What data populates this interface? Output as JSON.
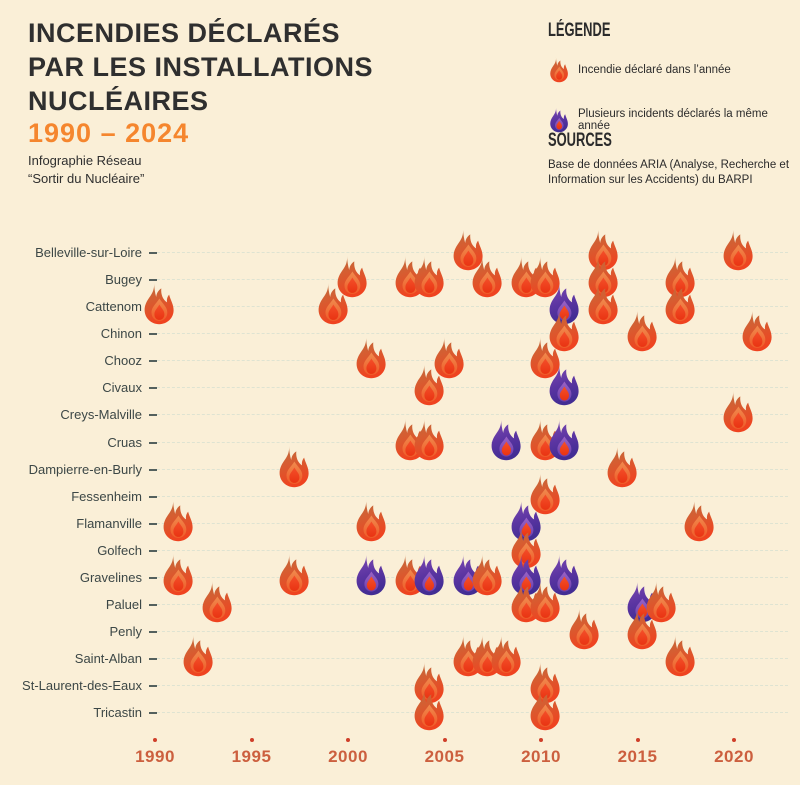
{
  "title": {
    "lines": [
      "INCENDIES DÉCLARÉS",
      "PAR LES INSTALLATIONS",
      "NUCLÉAIRES"
    ],
    "subtitle": "1990 – 2024"
  },
  "credit": {
    "lines": [
      "Infographie Réseau",
      "“Sortir du Nucléaire”"
    ]
  },
  "legend": {
    "heading": "LÉGENDE",
    "items": [
      {
        "type": "single",
        "icon": "single-fire-icon",
        "label": "Incendie déclaré dans l’année"
      },
      {
        "type": "multiple",
        "icon": "multiple-fire-icon",
        "label": "Plusieurs incidents déclarés la même année"
      }
    ]
  },
  "sources": {
    "heading": "SOURCES",
    "text": "Base de données ARIA (Analyse, Recherche et Information sur les Accidents) du BARPI"
  },
  "colors": {
    "background": "#faefd7",
    "title_text": "#2f2f2f",
    "accent_orange": "#f5862e",
    "axis_label_orange": "#cc5f3e",
    "row_label_dark": "#3c4746",
    "gridline": "#dee3d2",
    "flame_orange_top": "#b96e3e",
    "flame_orange_bottom": "#ef4320",
    "flame_purple_top": "#7f4cb3",
    "flame_purple_bottom": "#422d94",
    "flame_core_red": "#ee3a1a"
  },
  "chart_data": {
    "type": "scatter",
    "title": "Incendies déclarés par les installations nucléaires 1990 – 2024",
    "x_axis": {
      "range": [
        1990,
        2024
      ],
      "ticks": [
        1990,
        1995,
        2000,
        2005,
        2010,
        2015,
        2020
      ]
    },
    "marker_meaning": {
      "single": "incendie déclaré dans l’année",
      "multiple": "plusieurs incidents déclarés la même année"
    },
    "rows": [
      {
        "label": "Belleville-sur-Loire",
        "events": [
          {
            "year": 2006,
            "multiple": false
          },
          {
            "year": 2013,
            "multiple": false
          },
          {
            "year": 2020,
            "multiple": false
          }
        ]
      },
      {
        "label": "Bugey",
        "events": [
          {
            "year": 2000,
            "multiple": false
          },
          {
            "year": 2003,
            "multiple": false
          },
          {
            "year": 2004,
            "multiple": false
          },
          {
            "year": 2007,
            "multiple": false
          },
          {
            "year": 2009,
            "multiple": false
          },
          {
            "year": 2010,
            "multiple": false
          },
          {
            "year": 2013,
            "multiple": false
          },
          {
            "year": 2017,
            "multiple": false
          }
        ]
      },
      {
        "label": "Cattenom",
        "events": [
          {
            "year": 1990,
            "multiple": false
          },
          {
            "year": 1999,
            "multiple": false
          },
          {
            "year": 2011,
            "multiple": true
          },
          {
            "year": 2013,
            "multiple": false
          },
          {
            "year": 2017,
            "multiple": false
          }
        ]
      },
      {
        "label": "Chinon",
        "events": [
          {
            "year": 2011,
            "multiple": false
          },
          {
            "year": 2015,
            "multiple": false
          },
          {
            "year": 2021,
            "multiple": false
          }
        ]
      },
      {
        "label": "Chooz",
        "events": [
          {
            "year": 2001,
            "multiple": false
          },
          {
            "year": 2005,
            "multiple": false
          },
          {
            "year": 2010,
            "multiple": false
          }
        ]
      },
      {
        "label": "Civaux",
        "events": [
          {
            "year": 2004,
            "multiple": false
          },
          {
            "year": 2011,
            "multiple": true
          }
        ]
      },
      {
        "label": "Creys-Malville",
        "events": [
          {
            "year": 2020,
            "multiple": false
          }
        ]
      },
      {
        "label": "Cruas",
        "events": [
          {
            "year": 2003,
            "multiple": false
          },
          {
            "year": 2004,
            "multiple": false
          },
          {
            "year": 2008,
            "multiple": true
          },
          {
            "year": 2010,
            "multiple": false
          },
          {
            "year": 2011,
            "multiple": true
          }
        ]
      },
      {
        "label": "Dampierre-en-Burly",
        "events": [
          {
            "year": 1997,
            "multiple": false
          },
          {
            "year": 2014,
            "multiple": false
          }
        ]
      },
      {
        "label": "Fessenheim",
        "events": [
          {
            "year": 2010,
            "multiple": false
          }
        ]
      },
      {
        "label": "Flamanville",
        "events": [
          {
            "year": 1991,
            "multiple": false
          },
          {
            "year": 2001,
            "multiple": false
          },
          {
            "year": 2009,
            "multiple": true
          },
          {
            "year": 2018,
            "multiple": false
          }
        ]
      },
      {
        "label": "Golfech",
        "events": [
          {
            "year": 2009,
            "multiple": false
          }
        ]
      },
      {
        "label": "Gravelines",
        "events": [
          {
            "year": 1991,
            "multiple": false
          },
          {
            "year": 1997,
            "multiple": false
          },
          {
            "year": 2001,
            "multiple": true
          },
          {
            "year": 2003,
            "multiple": false
          },
          {
            "year": 2004,
            "multiple": true
          },
          {
            "year": 2006,
            "multiple": true
          },
          {
            "year": 2007,
            "multiple": false
          },
          {
            "year": 2009,
            "multiple": true
          },
          {
            "year": 2011,
            "multiple": true
          }
        ]
      },
      {
        "label": "Paluel",
        "events": [
          {
            "year": 1993,
            "multiple": false
          },
          {
            "year": 2009,
            "multiple": false
          },
          {
            "year": 2010,
            "multiple": false
          },
          {
            "year": 2015,
            "multiple": true
          },
          {
            "year": 2016,
            "multiple": false
          }
        ]
      },
      {
        "label": "Penly",
        "events": [
          {
            "year": 2012,
            "multiple": false
          },
          {
            "year": 2015,
            "multiple": false
          }
        ]
      },
      {
        "label": "Saint-Alban",
        "events": [
          {
            "year": 1992,
            "multiple": false
          },
          {
            "year": 2006,
            "multiple": false
          },
          {
            "year": 2007,
            "multiple": false
          },
          {
            "year": 2008,
            "multiple": false
          },
          {
            "year": 2017,
            "multiple": false
          }
        ]
      },
      {
        "label": "St-Laurent-des-Eaux",
        "events": [
          {
            "year": 2004,
            "multiple": false
          },
          {
            "year": 2010,
            "multiple": false
          }
        ]
      },
      {
        "label": "Tricastin",
        "events": [
          {
            "year": 2004,
            "multiple": false
          },
          {
            "year": 2010,
            "multiple": false
          }
        ]
      }
    ]
  }
}
